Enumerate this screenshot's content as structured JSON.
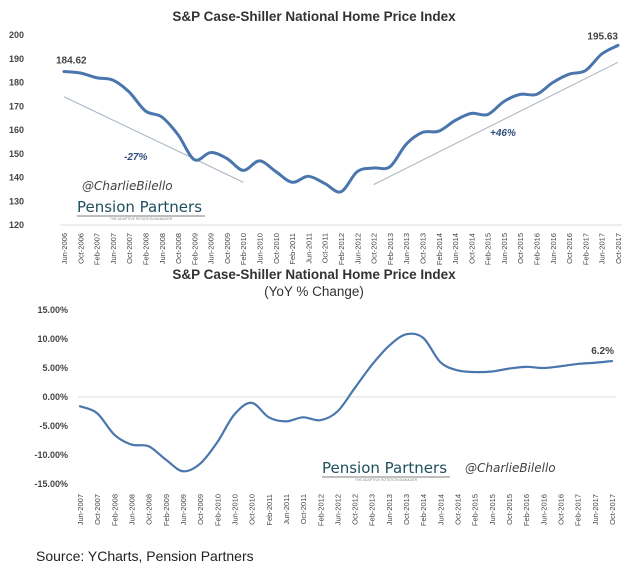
{
  "source": "Source: YCharts, Pension Partners",
  "chart_data": [
    {
      "type": "line",
      "title": "S&P Case-Shiller National Home Price Index",
      "xlabel": "",
      "ylabel": "",
      "ylim": [
        120,
        200
      ],
      "yticks": [
        120,
        130,
        140,
        150,
        160,
        170,
        180,
        190,
        200
      ],
      "ytick_labels": [
        "120",
        "130",
        "140",
        "150",
        "160",
        "170",
        "180",
        "190",
        "200"
      ],
      "grid": false,
      "x": [
        "Jun-2006",
        "Oct-2006",
        "Feb-2007",
        "Jun-2007",
        "Oct-2007",
        "Feb-2008",
        "Jun-2008",
        "Oct-2008",
        "Feb-2009",
        "Jun-2009",
        "Oct-2009",
        "Feb-2010",
        "Jun-2010",
        "Oct-2010",
        "Feb-2011",
        "Jun-2011",
        "Oct-2011",
        "Feb-2012",
        "Jun-2012",
        "Oct-2012",
        "Feb-2013",
        "Jun-2013",
        "Oct-2013",
        "Feb-2014",
        "Jun-2014",
        "Oct-2014",
        "Feb-2015",
        "Jun-2015",
        "Oct-2015",
        "Feb-2016",
        "Jun-2016",
        "Oct-2016",
        "Feb-2017",
        "Jun-2017",
        "Oct-2017"
      ],
      "series": [
        {
          "name": "S&P Case-Shiller National Home Price Index",
          "color": "#4a76ad",
          "values": [
            184.62,
            184.0,
            182.0,
            181.0,
            176.0,
            168.0,
            165.5,
            158.0,
            147.5,
            150.5,
            148.0,
            143.0,
            147.0,
            142.5,
            138.0,
            140.5,
            137.5,
            134.0,
            142.5,
            144.0,
            144.5,
            154.0,
            159.0,
            159.5,
            164.0,
            167.0,
            166.5,
            172.0,
            175.0,
            175.0,
            180.0,
            183.5,
            185.0,
            192.0,
            195.63
          ]
        }
      ],
      "annotations": [
        {
          "text": "184.62",
          "at": "Jun-2006"
        },
        {
          "text": "195.63",
          "at": "Oct-2017"
        },
        {
          "text": "-27%",
          "trend": "decline",
          "from": [
            "Jun-2006",
            174
          ],
          "to": [
            "Feb-2010",
            138
          ]
        },
        {
          "text": "+46%",
          "trend": "rise",
          "from": [
            "Oct-2012",
            137
          ],
          "to": [
            "Oct-2017",
            188.5
          ]
        }
      ],
      "watermarks": {
        "handle": "@CharlieBilello",
        "brand": "Pension Partners",
        "brand_sub": "THE ADAPTIVE ROTATION MANAGER"
      }
    },
    {
      "type": "line",
      "title": "S&P Case-Shiller National Home Price Index",
      "subtitle": "(YoY % Change)",
      "xlabel": "",
      "ylabel": "",
      "ylim": [
        -15,
        15
      ],
      "yticks": [
        -15,
        -10,
        -5,
        0,
        5,
        10,
        15
      ],
      "ytick_labels": [
        "-15.00%",
        "-10.00%",
        "-5.00%",
        "0.00%",
        "5.00%",
        "10.00%",
        "15.00%"
      ],
      "grid": false,
      "zero_line": true,
      "x": [
        "Jun-2007",
        "Oct-2007",
        "Feb-2008",
        "Jun-2008",
        "Oct-2008",
        "Feb-2009",
        "Jun-2009",
        "Oct-2009",
        "Feb-2010",
        "Jun-2010",
        "Oct-2010",
        "Feb-2011",
        "Jun-2011",
        "Oct-2011",
        "Feb-2012",
        "Jun-2012",
        "Oct-2012",
        "Feb-2013",
        "Jun-2013",
        "Oct-2013",
        "Feb-2014",
        "Jun-2014",
        "Oct-2014",
        "Feb-2015",
        "Jun-2015",
        "Oct-2015",
        "Feb-2016",
        "Jun-2016",
        "Oct-2016",
        "Feb-2017",
        "Jun-2017",
        "Oct-2017"
      ],
      "series": [
        {
          "name": "YoY % Change",
          "color": "#4a76ad",
          "values": [
            -1.6,
            -2.8,
            -6.5,
            -8.2,
            -8.5,
            -10.8,
            -12.8,
            -11.5,
            -7.8,
            -3.0,
            -1.0,
            -3.5,
            -4.2,
            -3.5,
            -4.0,
            -2.5,
            1.5,
            5.5,
            8.8,
            10.8,
            10.2,
            6.0,
            4.6,
            4.3,
            4.4,
            4.9,
            5.2,
            5.0,
            5.3,
            5.7,
            5.9,
            6.2
          ]
        }
      ],
      "annotations": [
        {
          "text": "6.2%",
          "at": "Oct-2017"
        }
      ],
      "watermarks": {
        "handle": "@CharlieBilello",
        "brand": "Pension Partners",
        "brand_sub": "THE ADAPTIVE ROTATION MANAGER"
      }
    }
  ]
}
